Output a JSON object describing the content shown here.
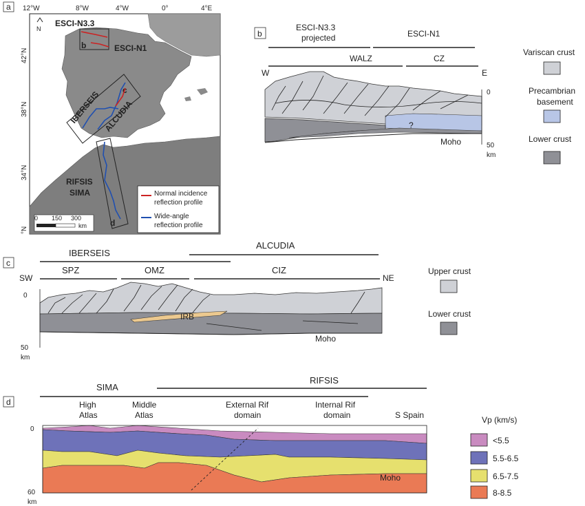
{
  "panels": {
    "a": {
      "letter": "a",
      "lon_ticks": [
        "12°W",
        "8°W",
        "4°W",
        "0°",
        "4°E"
      ],
      "lat_ticks": [
        "42°N",
        "38°N",
        "34°N",
        "°N"
      ],
      "profiles": {
        "escin33": "ESCI-N3.3",
        "escin1": "ESCI-N1",
        "iberseis": "IBERSEIS",
        "alcudia": "ALCUDIA",
        "rifsis": "RIFSIS",
        "sima": "SIMA"
      },
      "box_b": "b",
      "box_c": "c",
      "box_d": "d",
      "north": "N",
      "scale": {
        "t0": "0",
        "t1": "150",
        "t2": "300",
        "unit": "km"
      },
      "legend": {
        "normal_line1": "Normal incidence",
        "normal_line2": "reflection profile",
        "wide_line1": "Wide-angle",
        "wide_line2": "reflection profile",
        "normal_color": "#cc2222",
        "wide_color": "#1f4fb0"
      }
    },
    "b": {
      "letter": "b",
      "escin33_line1": "ESCI-N3.3",
      "escin33_line2": "projected",
      "escin1": "ESCI-N1",
      "walz": "WALZ",
      "cz": "CZ",
      "w": "W",
      "e": "E",
      "depth0": "0",
      "depth50": "50",
      "km": "km",
      "moho": "Moho",
      "q": "?",
      "legend": {
        "variscan": "Variscan crust",
        "pre_line1": "Precambrian",
        "pre_line2": "basement",
        "lower": "Lower crust"
      }
    },
    "c": {
      "letter": "c",
      "iberseis": "IBERSEIS",
      "alcudia": "ALCUDIA",
      "spz": "SPZ",
      "omz": "OMZ",
      "ciz": "CIZ",
      "sw": "SW",
      "ne": "NE",
      "depth0": "0",
      "depth50": "50",
      "km": "km",
      "irb": "IRB",
      "moho": "Moho",
      "legend": {
        "upper": "Upper crust",
        "lower": "Lower crust"
      }
    },
    "d": {
      "letter": "d",
      "sima": "SIMA",
      "rifsis": "RIFSIS",
      "high_l1": "High",
      "high_l2": "Atlas",
      "middle_l1": "Middle",
      "middle_l2": "Atlas",
      "ext_l1": "External Rif",
      "ext_l2": "domain",
      "int_l1": "Internal Rif",
      "int_l2": "domain",
      "sspain": "S Spain",
      "depth0": "0",
      "depth60": "60",
      "km": "km",
      "moho": "Moho",
      "legend": {
        "title": "Vp (km/s)",
        "v1": "<5.5",
        "v2": "5.5-6.5",
        "v3": "6.5-7.5",
        "v4": "8-8.5"
      }
    }
  },
  "colors": {
    "variscan": "#cfd1d6",
    "precambrian": "#b8c6e6",
    "lower_crust": "#8f9096",
    "irb": "#ecc98f",
    "vp1": "#c98bc0",
    "vp2": "#6e72b9",
    "vp3": "#e6e06e",
    "vp4": "#ea7a55"
  }
}
